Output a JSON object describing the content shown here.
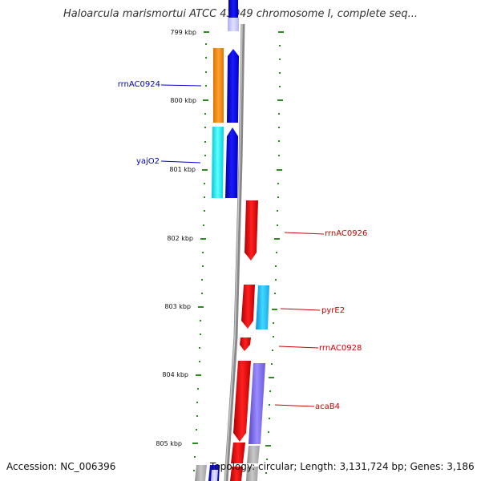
{
  "title": "Haloarcula marismortui ATCC 43049 chromosome I, complete seq...",
  "footer": {
    "accession": "Accession: NC_006396",
    "topology": "Topology: circular; Length: 3,131,724 bp; Genes: 3,186"
  },
  "positions": [
    "799 kbp",
    "800 kbp",
    "801 kbp",
    "802 kbp",
    "803 kbp",
    "804 kbp",
    "805 kbp"
  ],
  "genes": [
    {
      "name": "rrnAC0924",
      "strand": "left",
      "color": "#0000cc"
    },
    {
      "name": "yajO2",
      "strand": "left",
      "color": "#0000cc"
    },
    {
      "name": "rrnAC0926",
      "strand": "right",
      "color": "#cc0000"
    },
    {
      "name": "pyrE2",
      "strand": "right",
      "color": "#cc0000"
    },
    {
      "name": "rrnAC0928",
      "strand": "right",
      "color": "#cc0000"
    },
    {
      "name": "acaB4",
      "strand": "right",
      "color": "#cc0000"
    }
  ],
  "colors": {
    "forward": "#0000ee",
    "reverse": "#ee0000",
    "orange": "#ff8c00",
    "cyan": "#00e5ee",
    "skyblue": "#1ec8f0",
    "purple": "#7b68ee",
    "tick": "#2e8b22",
    "backbone": "#888888"
  }
}
